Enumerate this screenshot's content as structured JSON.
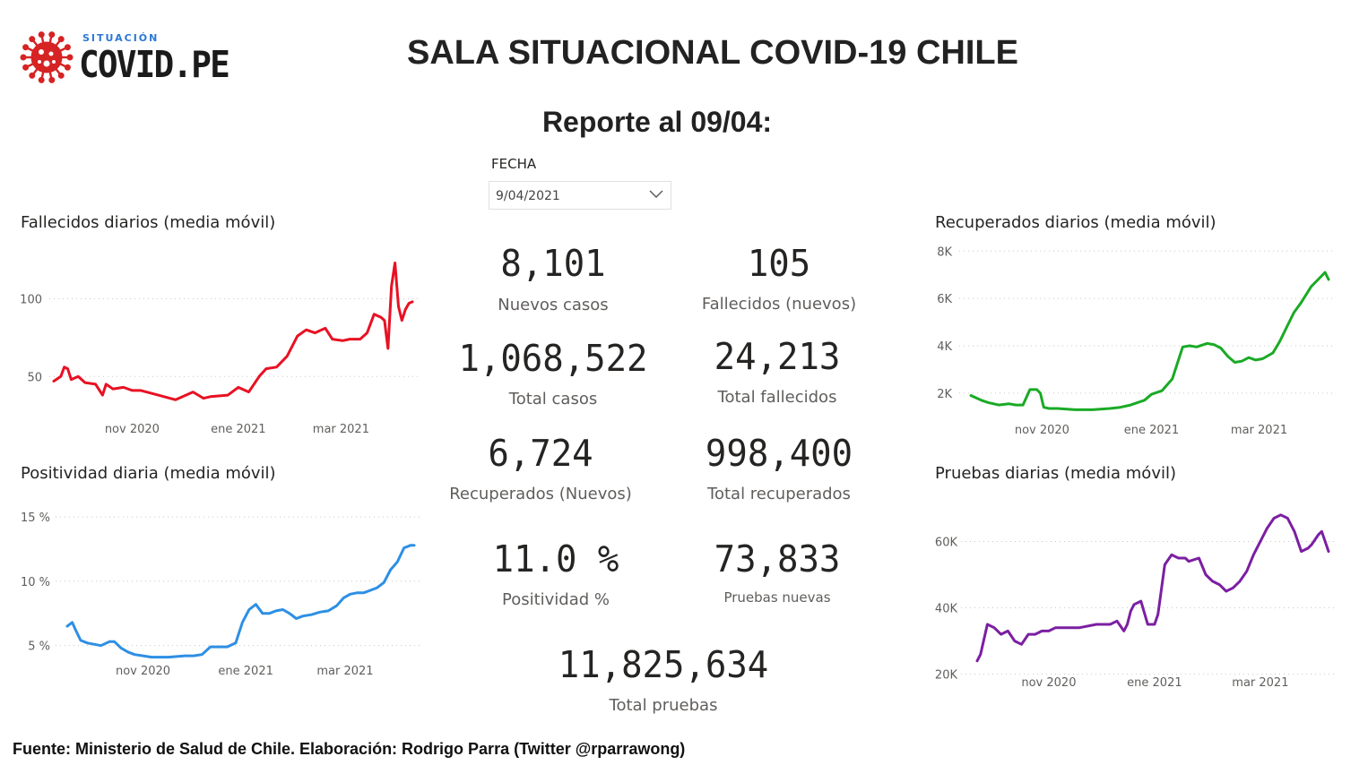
{
  "logo": {
    "small_text": "SITUACIÓN",
    "big_text": "COVID.PE",
    "icon": "virus-icon",
    "accent": "#d62323"
  },
  "header": {
    "title": "SALA SITUACIONAL COVID-19 CHILE",
    "subtitle": "Reporte al 09/04:"
  },
  "filter": {
    "label": "FECHA",
    "value": "9/04/2021",
    "icon": "chevron-down-icon"
  },
  "kpis": {
    "nuevos_casos": {
      "value": "8,101",
      "label": "Nuevos casos"
    },
    "fallecidos_nuevos": {
      "value": "105",
      "label": "Fallecidos (nuevos)"
    },
    "total_casos": {
      "value": "1,068,522",
      "label": "Total casos"
    },
    "total_fallecidos": {
      "value": "24,213",
      "label": "Total fallecidos"
    },
    "recuperados_nuevos": {
      "value": "6,724",
      "label": "Recuperados (Nuevos)"
    },
    "total_recuperados": {
      "value": "998,400",
      "label": "Total recuperados"
    },
    "positividad": {
      "value": "11.0 %",
      "label": "Positividad %"
    },
    "pruebas_nuevas": {
      "value": "73,833",
      "label": "Pruebas nuevas"
    },
    "total_pruebas": {
      "value": "11,825,634",
      "label": "Total pruebas"
    }
  },
  "footer": {
    "text": "Fuente: Ministerio de Salud de Chile. Elaboración: Rodrigo Parra (Twitter @rparrawong)"
  },
  "chart_data": [
    {
      "id": "fallecidos",
      "type": "line",
      "title": "Fallecidos diarios (media móvil)",
      "color": "#e81123",
      "ylim": [
        30,
        125
      ],
      "yticks": [
        {
          "v": 50,
          "label": "50"
        },
        {
          "v": 100,
          "label": "100"
        }
      ],
      "xlim": [
        0,
        206
      ],
      "xticks": [
        {
          "v": 45,
          "label": "nov 2020"
        },
        {
          "v": 106,
          "label": "ene 2021"
        },
        {
          "v": 165,
          "label": "mar 2021"
        }
      ],
      "grid": true,
      "x": [
        0,
        4,
        6,
        8,
        10,
        14,
        18,
        24,
        28,
        30,
        34,
        40,
        45,
        50,
        60,
        70,
        80,
        86,
        90,
        100,
        106,
        112,
        118,
        122,
        128,
        134,
        140,
        145,
        150,
        156,
        160,
        166,
        170,
        176,
        180,
        184,
        188,
        190,
        192,
        194,
        196,
        198,
        200,
        202,
        204,
        206
      ],
      "y": [
        47,
        50,
        56,
        55,
        48,
        50,
        46,
        45,
        38,
        45,
        42,
        43,
        41,
        41,
        38,
        35,
        40,
        36,
        37,
        38,
        43,
        40,
        50,
        55,
        56,
        63,
        76,
        80,
        78,
        81,
        74,
        73,
        74,
        74,
        78,
        90,
        88,
        86,
        68,
        108,
        123,
        95,
        86,
        93,
        97,
        98
      ]
    },
    {
      "id": "positividad",
      "type": "line",
      "title": "Positividad diaria (media móvil)",
      "color": "#2d8fe4",
      "ylim": [
        4.0,
        15.5
      ],
      "yticks": [
        {
          "v": 5,
          "label": "5 %"
        },
        {
          "v": 10,
          "label": "10 %"
        },
        {
          "v": 15,
          "label": "15 %"
        }
      ],
      "xlim": [
        0,
        206
      ],
      "xticks": [
        {
          "v": 45,
          "label": "nov 2020"
        },
        {
          "v": 106,
          "label": "ene 2021"
        },
        {
          "v": 165,
          "label": "mar 2021"
        }
      ],
      "grid": true,
      "x": [
        0,
        3,
        5,
        8,
        12,
        20,
        25,
        28,
        32,
        36,
        40,
        45,
        50,
        60,
        70,
        75,
        80,
        85,
        90,
        95,
        100,
        104,
        108,
        112,
        116,
        120,
        124,
        128,
        132,
        136,
        140,
        145,
        150,
        155,
        160,
        164,
        168,
        172,
        176,
        180,
        184,
        188,
        192,
        196,
        200,
        204,
        206
      ],
      "y": [
        6.5,
        6.8,
        6.2,
        5.4,
        5.2,
        5.0,
        5.3,
        5.3,
        4.8,
        4.5,
        4.3,
        4.2,
        4.1,
        4.1,
        4.2,
        4.2,
        4.3,
        4.9,
        4.9,
        4.9,
        5.2,
        6.8,
        7.8,
        8.2,
        7.5,
        7.5,
        7.7,
        7.8,
        7.5,
        7.1,
        7.3,
        7.4,
        7.6,
        7.7,
        8.1,
        8.7,
        9.0,
        9.1,
        9.1,
        9.3,
        9.5,
        9.9,
        10.9,
        11.5,
        12.6,
        12.8,
        12.8
      ]
    },
    {
      "id": "recuperados",
      "type": "line",
      "title": "Recuperados diarios (media móvil)",
      "color": "#1aaa26",
      "ylim": [
        1200,
        8200
      ],
      "yticks": [
        {
          "v": 2000,
          "label": "2K"
        },
        {
          "v": 4000,
          "label": "4K"
        },
        {
          "v": 6000,
          "label": "6K"
        },
        {
          "v": 8000,
          "label": "8K"
        }
      ],
      "xlim": [
        0,
        206
      ],
      "xticks": [
        {
          "v": 41,
          "label": "nov 2020"
        },
        {
          "v": 104,
          "label": "ene 2021"
        },
        {
          "v": 166,
          "label": "mar 2021"
        }
      ],
      "grid": true,
      "x": [
        0,
        6,
        10,
        16,
        22,
        26,
        30,
        34,
        38,
        40,
        42,
        45,
        50,
        60,
        70,
        80,
        86,
        92,
        96,
        100,
        104,
        110,
        116,
        122,
        126,
        130,
        136,
        140,
        144,
        148,
        152,
        156,
        160,
        164,
        168,
        174,
        178,
        182,
        186,
        190,
        196,
        200,
        204,
        206
      ],
      "y": [
        1900,
        1700,
        1600,
        1500,
        1550,
        1500,
        1500,
        2150,
        2150,
        2000,
        1400,
        1350,
        1350,
        1300,
        1300,
        1350,
        1400,
        1500,
        1600,
        1700,
        1950,
        2100,
        2600,
        3950,
        4000,
        3950,
        4100,
        4050,
        3900,
        3550,
        3300,
        3350,
        3500,
        3400,
        3450,
        3700,
        4200,
        4800,
        5400,
        5800,
        6500,
        6800,
        7100,
        6800
      ]
    },
    {
      "id": "pruebas",
      "type": "line",
      "title": "Pruebas diarias (media móvil)",
      "color": "#7b1fa2",
      "ylim": [
        18000,
        72000
      ],
      "yticks": [
        {
          "v": 20000,
          "label": "20K"
        },
        {
          "v": 40000,
          "label": "40K"
        },
        {
          "v": 60000,
          "label": "60K"
        }
      ],
      "xlim": [
        0,
        206
      ],
      "xticks": [
        {
          "v": 42,
          "label": "nov 2020"
        },
        {
          "v": 104,
          "label": "ene 2021"
        },
        {
          "v": 166,
          "label": "mar 2021"
        }
      ],
      "grid": true,
      "x": [
        0,
        2,
        6,
        10,
        14,
        18,
        22,
        26,
        30,
        34,
        38,
        42,
        46,
        54,
        60,
        70,
        78,
        82,
        86,
        88,
        90,
        92,
        96,
        100,
        104,
        106,
        110,
        114,
        118,
        122,
        124,
        130,
        134,
        138,
        142,
        146,
        150,
        154,
        158,
        162,
        166,
        170,
        174,
        178,
        182,
        186,
        190,
        194,
        196,
        200,
        202,
        206
      ],
      "y": [
        24000,
        26000,
        35000,
        34000,
        32000,
        33000,
        30000,
        29000,
        32000,
        32000,
        33000,
        33000,
        34000,
        34000,
        34000,
        35000,
        35000,
        36000,
        33000,
        35000,
        39000,
        41000,
        42000,
        35000,
        35000,
        38000,
        53000,
        56000,
        55000,
        55000,
        54000,
        55000,
        50000,
        48000,
        47000,
        45000,
        46000,
        48000,
        51000,
        56000,
        60000,
        64000,
        67000,
        68000,
        67000,
        63000,
        57000,
        58000,
        59000,
        62000,
        63000,
        57000
      ]
    }
  ]
}
